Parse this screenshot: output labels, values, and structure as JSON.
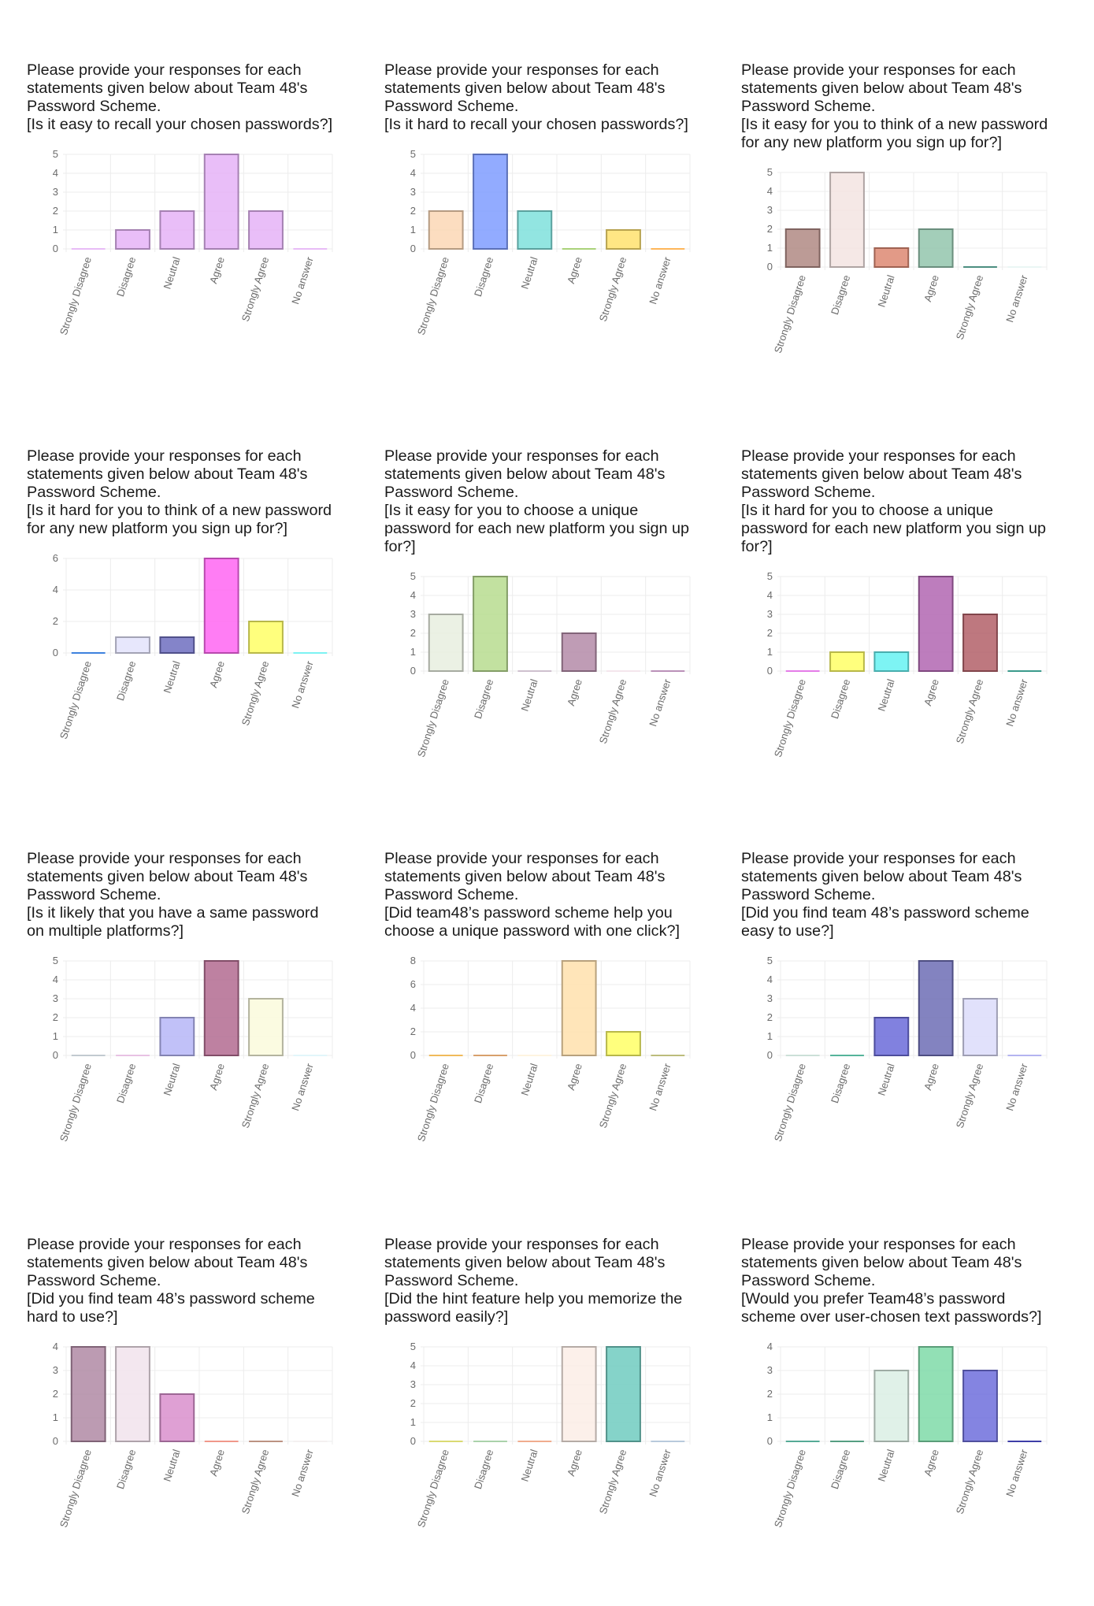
{
  "chart_data": [
    {
      "type": "bar",
      "title": [
        "Please provide your responses for each",
        "statements given below about Team 48's",
        "Password Scheme.",
        "[Is it easy to recall your chosen passwords?]"
      ],
      "categories": [
        "Strongly Disagree",
        "Disagree",
        "Neutral",
        "Agree",
        "Strongly Agree",
        "No answer"
      ],
      "values": [
        0,
        1,
        2,
        5,
        2,
        0
      ],
      "yticks": [
        0,
        1,
        2,
        3,
        4,
        5
      ],
      "ylim": [
        0,
        5
      ],
      "colors": [
        "#e5b3f7",
        "#e5b3f7",
        "#e5b3f7",
        "#e5b3f7",
        "#e5b3f7",
        "#e5b3f7"
      ]
    },
    {
      "type": "bar",
      "title": [
        "Please provide your responses for each",
        "statements given below about Team 48's",
        "Password Scheme.",
        "[Is it hard to recall your chosen passwords?]"
      ],
      "categories": [
        "Strongly Disagree",
        "Disagree",
        "Neutral",
        "Agree",
        "Strongly Agree",
        "No answer"
      ],
      "values": [
        2,
        5,
        2,
        0,
        1,
        0
      ],
      "yticks": [
        0,
        1,
        2,
        3,
        4,
        5
      ],
      "ylim": [
        0,
        5
      ],
      "colors": [
        "#fbd7b5",
        "#7f9cff",
        "#7fe0dc",
        "#9ccc65",
        "#ffe26e",
        "#ffab40"
      ]
    },
    {
      "type": "bar",
      "title": [
        "Please provide your responses for each",
        "statements given below about Team 48's",
        "Password Scheme.",
        "[Is it easy for you to think of a new password",
        "for any new platform you sign up for?]"
      ],
      "categories": [
        "Strongly Disagree",
        "Disagree",
        "Neutral",
        "Agree",
        "Strongly Agree",
        "No answer"
      ],
      "values": [
        2,
        5,
        1,
        2,
        0,
        0
      ],
      "yticks": [
        0,
        1,
        2,
        3,
        4,
        5
      ],
      "ylim": [
        0,
        5
      ],
      "colors": [
        "#b08a84",
        "#f3e4e2",
        "#dd8872",
        "#93c5ad",
        "#2e7d6b",
        "#e9f7f5"
      ]
    },
    {
      "type": "bar",
      "title": [
        "Please provide your responses for each",
        "statements given below about Team 48's",
        "Password Scheme.",
        "[Is it hard for you to think of a new password",
        "for any new platform you sign up for?]"
      ],
      "categories": [
        "Strongly Disagree",
        "Disagree",
        "Neutral",
        "Agree",
        "Strongly Agree",
        "No answer"
      ],
      "values": [
        0,
        1,
        1,
        6,
        2,
        0
      ],
      "yticks": [
        0,
        2,
        4,
        6
      ],
      "ylim": [
        0,
        6
      ],
      "colors": [
        "#1e6fd9",
        "#e3e3fb",
        "#6f6fbf",
        "#ff66f2",
        "#ffff66",
        "#66f2f2"
      ]
    },
    {
      "type": "bar",
      "title": [
        "Please provide your responses for each",
        "statements given below about Team 48's",
        "Password Scheme.",
        "[Is it easy for you to choose a unique",
        "password for each new platform you sign up",
        "for?]"
      ],
      "categories": [
        "Strongly Disagree",
        "Disagree",
        "Neutral",
        "Agree",
        "Strongly Agree",
        "No answer"
      ],
      "values": [
        3,
        5,
        0,
        2,
        0,
        0
      ],
      "yticks": [
        0,
        1,
        2,
        3,
        4,
        5
      ],
      "ylim": [
        0,
        5
      ],
      "colors": [
        "#e8eedf",
        "#b7dc8f",
        "#c8b7c8",
        "#b48ba8",
        "#f3e3ea",
        "#b07fae"
      ]
    },
    {
      "type": "bar",
      "title": [
        "Please provide your responses for each",
        "statements given below about Team 48's",
        "Password Scheme.",
        "[Is it hard for you to choose a unique",
        "password for each new platform you sign up",
        "for?]"
      ],
      "categories": [
        "Strongly Disagree",
        "Disagree",
        "Neutral",
        "Agree",
        "Strongly Agree",
        "No answer"
      ],
      "values": [
        0,
        1,
        1,
        5,
        3,
        0
      ],
      "yticks": [
        0,
        1,
        2,
        3,
        4,
        5
      ],
      "ylim": [
        0,
        5
      ],
      "colors": [
        "#e066e6",
        "#ffff66",
        "#66f2f2",
        "#b266b2",
        "#b36068",
        "#1a8a7a"
      ]
    },
    {
      "type": "bar",
      "title": [
        "Please provide your responses for each",
        "statements given below about Team 48's",
        "Password Scheme.",
        "[Is it likely that you have a same password",
        "on multiple platforms?]"
      ],
      "categories": [
        "Strongly Disagree",
        "Disagree",
        "Neutral",
        "Agree",
        "Strongly Agree",
        "No answer"
      ],
      "values": [
        0,
        0,
        2,
        5,
        3,
        0
      ],
      "yticks": [
        0,
        1,
        2,
        3,
        4,
        5
      ],
      "ylim": [
        0,
        5
      ],
      "colors": [
        "#b9c3c9",
        "#e6b8e0",
        "#b6b6f7",
        "#b36b90",
        "#fafadc",
        "#dff7fa"
      ]
    },
    {
      "type": "bar",
      "title": [
        "Please provide your responses for each",
        "statements given below about Team 48's",
        "Password Scheme.",
        "[Did team48’s password scheme help you",
        "choose a unique password with one click?]"
      ],
      "categories": [
        "Strongly Disagree",
        "Disagree",
        "Neutral",
        "Agree",
        "Strongly Agree",
        "No answer"
      ],
      "values": [
        0,
        0,
        0,
        8,
        2,
        0
      ],
      "yticks": [
        0,
        2,
        4,
        6,
        8
      ],
      "ylim": [
        0,
        8
      ],
      "colors": [
        "#f0b040",
        "#d29155",
        "#fff3dd",
        "#ffe0ad",
        "#ffff66",
        "#b3b366"
      ]
    },
    {
      "type": "bar",
      "title": [
        "Please provide your responses for each",
        "statements given below about Team 48's",
        "Password Scheme.",
        "[Did you find team 48’s password scheme",
        "easy to use?]"
      ],
      "categories": [
        "Strongly Disagree",
        "Disagree",
        "Neutral",
        "Agree",
        "Strongly Agree",
        "No answer"
      ],
      "values": [
        0,
        0,
        2,
        5,
        3,
        0
      ],
      "yticks": [
        0,
        1,
        2,
        3,
        4,
        5
      ],
      "ylim": [
        0,
        5
      ],
      "colors": [
        "#c6dcd3",
        "#3aa88a",
        "#6b6bd9",
        "#6d6db5",
        "#dcdcfa",
        "#a9a9f0"
      ]
    },
    {
      "type": "bar",
      "title": [
        "Please provide your responses for each",
        "statements given below about Team 48's",
        "Password Scheme.",
        "[Did you find team 48’s password scheme",
        "hard to use?]"
      ],
      "categories": [
        "Strongly Disagree",
        "Disagree",
        "Neutral",
        "Agree",
        "Strongly Agree",
        "No answer"
      ],
      "values": [
        4,
        4,
        2,
        0,
        0,
        0
      ],
      "yticks": [
        0,
        1,
        2,
        3,
        4
      ],
      "ylim": [
        0,
        4
      ],
      "colors": [
        "#b08aa4",
        "#f1e3ec",
        "#d98fcd",
        "#ee8877",
        "#b3806e",
        "#f5eeee"
      ]
    },
    {
      "type": "bar",
      "title": [
        "Please provide your responses for each",
        "statements given below about Team 48's",
        "Password Scheme.",
        "[Did the hint feature help you memorize the",
        "password easily?]"
      ],
      "categories": [
        "Strongly Disagree",
        "Disagree",
        "Neutral",
        "Agree",
        "Strongly Agree",
        "No answer"
      ],
      "values": [
        0,
        0,
        0,
        5,
        5,
        0
      ],
      "yticks": [
        0,
        1,
        2,
        3,
        4,
        5
      ],
      "ylim": [
        0,
        5
      ],
      "colors": [
        "#d6d65a",
        "#9ccb9c",
        "#efa07c",
        "#fcede6",
        "#70cbc0",
        "#aec3d8"
      ]
    },
    {
      "type": "bar",
      "title": [
        "Please provide your responses for each",
        "statements given below about Team 48's",
        "Password Scheme.",
        "[Would you prefer Team48’s password",
        "scheme over user-chosen text passwords?]"
      ],
      "categories": [
        "Strongly Disagree",
        "Disagree",
        "Neutral",
        "Agree",
        "Strongly Agree",
        "No answer"
      ],
      "values": [
        0,
        0,
        3,
        4,
        3,
        0
      ],
      "yticks": [
        0,
        1,
        2,
        3,
        4
      ],
      "ylim": [
        0,
        4
      ],
      "colors": [
        "#3b9e86",
        "#3a8e6e",
        "#dbeee4",
        "#7fdaa8",
        "#6f6fdc",
        "#1e1e9a"
      ]
    }
  ]
}
